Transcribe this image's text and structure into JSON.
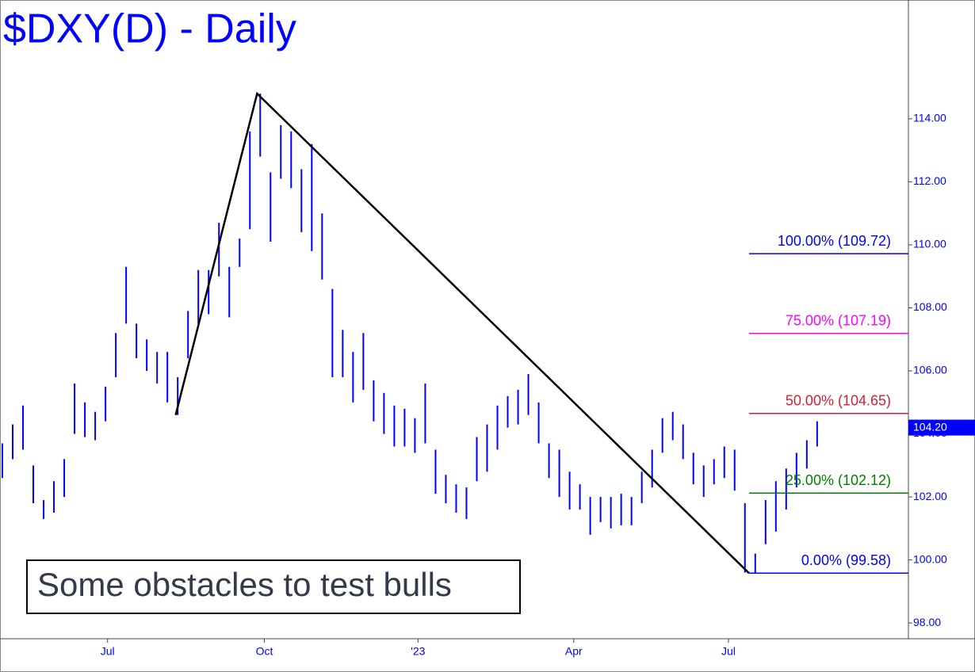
{
  "chart_data": {
    "type": "ohlc",
    "title": "$DXY(D) - Daily",
    "annotation": "Some obstacles to test bulls",
    "color": "#0000ff",
    "x": [
      0,
      1,
      2,
      3,
      4,
      5,
      6,
      7,
      8,
      9,
      10,
      11,
      12,
      13,
      14,
      15,
      16,
      17,
      18,
      19,
      20,
      21,
      22,
      23,
      24,
      25,
      26,
      27,
      28,
      29,
      30,
      31,
      32,
      33,
      34,
      35,
      36,
      37,
      38,
      39,
      40,
      41,
      42,
      43,
      44,
      45,
      46,
      47,
      48,
      49,
      50,
      51,
      52,
      53,
      54,
      55,
      56,
      57,
      58,
      59,
      60,
      61,
      62,
      63,
      64,
      65,
      66,
      67,
      68,
      69,
      70,
      71,
      72,
      73,
      74,
      75,
      76,
      77,
      78,
      79
    ],
    "high": [
      103.7,
      104.3,
      104.9,
      103.0,
      101.9,
      102.5,
      103.2,
      105.6,
      105.0,
      104.7,
      105.5,
      107.2,
      109.3,
      107.5,
      107.0,
      106.6,
      106.6,
      105.8,
      107.9,
      109.2,
      109.2,
      110.7,
      109.3,
      110.2,
      113.6,
      114.8,
      112.3,
      113.8,
      113.6,
      112.4,
      113.2,
      111.0,
      108.6,
      107.3,
      106.6,
      107.2,
      105.7,
      105.3,
      104.9,
      104.8,
      104.5,
      105.6,
      103.5,
      102.7,
      102.4,
      102.3,
      103.9,
      104.3,
      104.9,
      105.2,
      105.4,
      105.9,
      105.0,
      103.7,
      103.5,
      102.8,
      102.4,
      102.0,
      102.0,
      102.0,
      102.1,
      102.0,
      102.8,
      103.5,
      104.5,
      104.7,
      104.3,
      103.4,
      103.0,
      103.2,
      103.6,
      103.5,
      101.8,
      100.2,
      101.9,
      102.5,
      102.9,
      103.4,
      103.8,
      104.4
    ],
    "low": [
      102.6,
      103.2,
      103.5,
      101.8,
      101.3,
      101.5,
      102.0,
      104.0,
      103.9,
      103.8,
      104.4,
      105.8,
      107.5,
      106.4,
      106.0,
      105.6,
      105.0,
      104.6,
      106.4,
      107.5,
      107.8,
      109.0,
      107.7,
      109.3,
      110.5,
      112.8,
      110.1,
      112.1,
      111.8,
      110.4,
      109.8,
      108.9,
      105.8,
      105.8,
      105.0,
      105.4,
      104.4,
      104.0,
      103.6,
      103.6,
      103.4,
      103.7,
      102.1,
      101.8,
      101.5,
      101.3,
      102.5,
      102.8,
      103.5,
      104.2,
      104.3,
      104.6,
      103.7,
      102.6,
      102.0,
      101.6,
      101.6,
      100.8,
      101.2,
      101.0,
      101.1,
      101.1,
      101.8,
      102.3,
      103.4,
      103.8,
      103.2,
      102.4,
      102.0,
      102.4,
      102.6,
      102.2,
      99.6,
      99.6,
      100.5,
      100.9,
      101.6,
      102.3,
      102.9,
      103.6
    ],
    "trend_line": {
      "color": "#000000",
      "x": [
        16.8,
        24.7,
        72.4
      ],
      "y": [
        104.6,
        114.8,
        99.58
      ]
    },
    "levels": [
      {
        "value": 109.72,
        "label": "100.00% (109.72)",
        "color": "#0000ff"
      },
      {
        "value": 107.19,
        "label": "75.00% (107.19)",
        "color": "#ff00ff"
      },
      {
        "value": 104.65,
        "label": "50.00% (104.65)",
        "color": "#cc2233"
      },
      {
        "value": 102.12,
        "label": "25.00% (102.12)",
        "color": "#008000"
      },
      {
        "value": 99.58,
        "label": "0.00% (99.58)",
        "color": "#0000ff"
      }
    ],
    "last_price": {
      "value": 104.2,
      "label": "104.20"
    },
    "xlim": [
      -0.23,
      87.85
    ],
    "ylim": [
      97.5,
      117.77
    ],
    "xticks": [
      {
        "value": 10.2,
        "label": "Jul"
      },
      {
        "value": 25.4,
        "label": "Oct"
      },
      {
        "value": 40.3,
        "label": "'23"
      },
      {
        "value": 55.4,
        "label": "Apr"
      },
      {
        "value": 70.4,
        "label": "Jul"
      }
    ],
    "yticks": [
      {
        "value": 98,
        "label": "98.00"
      },
      {
        "value": 100,
        "label": "100.00"
      },
      {
        "value": 102,
        "label": "102.00"
      },
      {
        "value": 104,
        "label": "104.00"
      },
      {
        "value": 106,
        "label": "106.00"
      },
      {
        "value": 108,
        "label": "108.00"
      },
      {
        "value": 110,
        "label": "110.00"
      },
      {
        "value": 112,
        "label": "112.00"
      },
      {
        "value": 114,
        "label": "114.00"
      }
    ]
  }
}
